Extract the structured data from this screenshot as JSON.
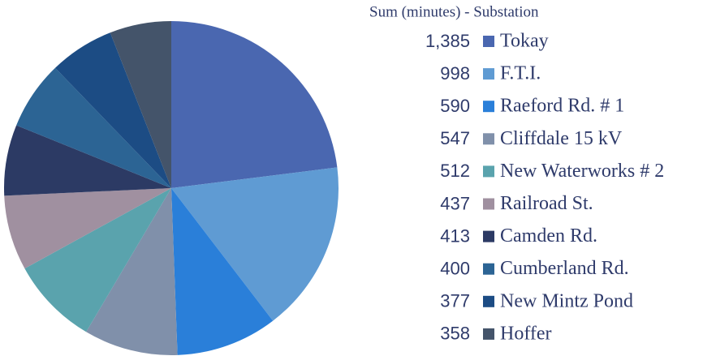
{
  "chart_data": {
    "type": "pie",
    "legend_title": "Sum (minutes) - Substation",
    "categories": [
      "Tokay",
      "F.T.I.",
      "Raeford Rd. # 1",
      "Cliffdale 15 kV",
      "New Waterworks # 2",
      "Railroad St.",
      "Camden Rd.",
      "Cumberland Rd.",
      "New Mintz Pond",
      "Hoffer"
    ],
    "values": [
      1385,
      998,
      590,
      547,
      512,
      437,
      413,
      400,
      377,
      358
    ],
    "value_labels": [
      "1,385",
      "998",
      "590",
      "547",
      "512",
      "437",
      "413",
      "400",
      "377",
      "358"
    ],
    "colors": [
      "#4a67b0",
      "#5f9bd3",
      "#2a7fd9",
      "#8090aa",
      "#5aa3ad",
      "#a090a0",
      "#2c3a64",
      "#2c6494",
      "#1c4c84",
      "#44546a"
    ],
    "legend": "right"
  }
}
